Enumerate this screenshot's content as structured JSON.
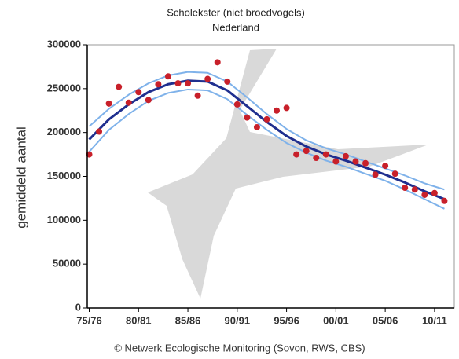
{
  "chart_data": {
    "type": "line",
    "title": "Scholekster (niet broedvogels)",
    "subtitle": "Nederland",
    "y_label": "gemiddeld aantal",
    "footnote": "© Netwerk Ecologische Monitoring (Sovon, RWS, CBS)",
    "xlim": [
      1974.8,
      2012
    ],
    "xticks": [
      {
        "value": 1975,
        "label": "75/76"
      },
      {
        "value": 1980,
        "label": "80/81"
      },
      {
        "value": 1985,
        "label": "85/86"
      },
      {
        "value": 1990,
        "label": "90/91"
      },
      {
        "value": 1995,
        "label": "95/96"
      },
      {
        "value": 2000,
        "label": "00/01"
      },
      {
        "value": 2005,
        "label": "05/06"
      },
      {
        "value": 2010,
        "label": "10/11"
      }
    ],
    "ylim": [
      0,
      300000
    ],
    "yticks": [
      0,
      50000,
      100000,
      150000,
      200000,
      250000,
      300000
    ],
    "series": [
      {
        "style": "line",
        "color": "#7fb2ea",
        "width": 2,
        "x": [
          1975,
          1977,
          1979,
          1981,
          1983,
          1985,
          1987,
          1989,
          1991,
          1993,
          1995,
          1997,
          1999,
          2001,
          2003,
          2005,
          2007,
          2009,
          2011
        ],
        "values": [
          207000,
          227000,
          243000,
          256000,
          265000,
          269000,
          268000,
          258000,
          240000,
          221000,
          204000,
          191000,
          182000,
          175000,
          167000,
          159000,
          151000,
          142000,
          135000
        ]
      },
      {
        "style": "line",
        "color": "#7fb2ea",
        "width": 2,
        "x": [
          1975,
          1977,
          1979,
          1981,
          1983,
          1985,
          1987,
          1989,
          1991,
          1993,
          1995,
          1997,
          1999,
          2001,
          2003,
          2005,
          2007,
          2009,
          2011
        ],
        "values": [
          178000,
          203000,
          221000,
          236000,
          245000,
          249000,
          248000,
          238000,
          220000,
          203000,
          188000,
          177000,
          168000,
          161000,
          153000,
          145000,
          135000,
          124000,
          113000
        ]
      },
      {
        "style": "line",
        "color": "#1f2f8f",
        "width": 3,
        "x": [
          1975,
          1977,
          1979,
          1981,
          1983,
          1985,
          1987,
          1989,
          1991,
          1993,
          1995,
          1997,
          1999,
          2001,
          2003,
          2005,
          2007,
          2009,
          2011
        ],
        "values": [
          192000,
          215000,
          232000,
          246000,
          255000,
          259000,
          258000,
          248000,
          230000,
          212000,
          196000,
          184000,
          175000,
          168000,
          160000,
          152000,
          143000,
          133000,
          124000
        ]
      },
      {
        "style": "markers",
        "color": "#c8202a",
        "x": [
          1975,
          1976,
          1977,
          1978,
          1979,
          1980,
          1981,
          1982,
          1983,
          1984,
          1985,
          1986,
          1987,
          1988,
          1989,
          1990,
          1991,
          1992,
          1993,
          1994,
          1995,
          1996,
          1997,
          1998,
          1999,
          2000,
          2001,
          2002,
          2003,
          2004,
          2005,
          2006,
          2007,
          2008,
          2009,
          2010,
          2011
        ],
        "values": [
          175000,
          201000,
          233000,
          252000,
          234000,
          246000,
          237000,
          255000,
          264000,
          256000,
          256000,
          242000,
          261000,
          280000,
          258000,
          232000,
          217000,
          206000,
          215000,
          225000,
          228000,
          175000,
          179000,
          171000,
          175000,
          167000,
          173000,
          167000,
          165000,
          152000,
          162000,
          153000,
          137000,
          135000,
          129000,
          131000,
          122000
        ]
      }
    ]
  }
}
